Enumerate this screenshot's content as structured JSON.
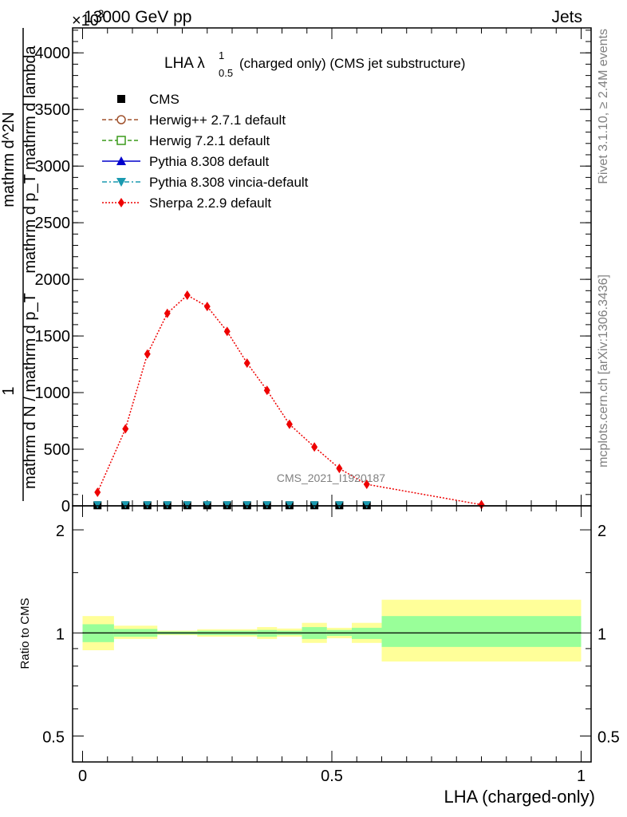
{
  "header": {
    "energy": "13000 GeV pp",
    "process": "Jets",
    "multiplier": "×10",
    "multiplier_exp": "-3"
  },
  "side_labels": {
    "rivet": "Rivet 3.1.10, ≥ 2.4M events",
    "mcplots": "mcplots.cern.ch [arXiv:1306.3436]"
  },
  "plot_title": {
    "main": "LHA λ",
    "sup": "1",
    "sub": "0.5",
    "rest": "(charged only) (CMS jet substructure)"
  },
  "watermark": "CMS_2021_I1920187",
  "ylabel_main": {
    "left_line": "1",
    "left_den": "mathrm d N / mathrm d p_T",
    "right_num": "mathrm d^2N",
    "right_den": "mathrm d p_T mathrm d lambda"
  },
  "ylabel_ratio": "Ratio to CMS",
  "xlabel": "LHA (charged-only)",
  "legend": [
    {
      "label": "CMS",
      "color": "#000000",
      "marker": "square-filled",
      "line": "none"
    },
    {
      "label": "Herwig++ 2.7.1 default",
      "color": "#a0522d",
      "marker": "circle-open",
      "line": "dashed"
    },
    {
      "label": "Herwig 7.2.1 default",
      "color": "#3a9a1a",
      "marker": "square-open",
      "line": "dashed"
    },
    {
      "label": "Pythia 8.308 default",
      "color": "#0000cc",
      "marker": "triangle-up",
      "line": "solid"
    },
    {
      "label": "Pythia 8.308 vincia-default",
      "color": "#1a9ab0",
      "marker": "triangle-down",
      "line": "dashdot"
    },
    {
      "label": "Sherpa 2.2.9 default",
      "color": "#ee0000",
      "marker": "diamond",
      "line": "dotted"
    }
  ],
  "chart_data": [
    {
      "type": "line",
      "title": "LHA λ^1_0.5 (charged only) (CMS jet substructure)",
      "xlabel": "LHA (charged-only)",
      "ylabel": "1/(mathrm d N / mathrm d p_T) mathrm d^2N / (mathrm d p_T mathrm d lambda)",
      "xlim": [
        -0.02,
        1.02
      ],
      "ylim": [
        0,
        4.22
      ],
      "y_multiplier": "×10^-3",
      "y_ticks": [
        0,
        0.5,
        1.0,
        1.5,
        2.0,
        2.5,
        3.0,
        3.5,
        4.0
      ],
      "y_tick_labels": [
        "0",
        "500",
        "1000",
        "1500",
        "2000",
        "2500",
        "3000",
        "3500",
        "4000"
      ],
      "x_ticks": [
        0,
        0.5,
        1
      ],
      "x_tick_labels": [
        "0",
        "0.5",
        "1"
      ],
      "series": [
        {
          "name": "Sherpa 2.2.9 default",
          "x": [
            0.03,
            0.086,
            0.13,
            0.17,
            0.21,
            0.25,
            0.29,
            0.33,
            0.37,
            0.415,
            0.465,
            0.515,
            0.57,
            0.8
          ],
          "y": [
            0.12,
            0.68,
            1.34,
            1.7,
            1.86,
            1.76,
            1.54,
            1.26,
            1.02,
            0.72,
            0.52,
            0.33,
            0.19,
            0.01
          ]
        },
        {
          "name": "CMS",
          "x": [
            0.03,
            0.086,
            0.13,
            0.17,
            0.21,
            0.25,
            0.29,
            0.33,
            0.37,
            0.415,
            0.465,
            0.515,
            0.57
          ],
          "y": [
            0.005,
            0.005,
            0.005,
            0.005,
            0.005,
            0.005,
            0.005,
            0.005,
            0.005,
            0.005,
            0.005,
            0.005,
            0.005
          ]
        },
        {
          "name": "Pythia 8.308 vincia-default",
          "x": [
            0.03,
            0.086,
            0.13,
            0.17,
            0.21,
            0.25,
            0.29,
            0.33,
            0.37,
            0.415,
            0.465,
            0.515,
            0.57
          ],
          "y": [
            0.005,
            0.005,
            0.005,
            0.005,
            0.005,
            0.005,
            0.005,
            0.005,
            0.005,
            0.005,
            0.005,
            0.005,
            0.005
          ]
        }
      ]
    },
    {
      "type": "area",
      "ylabel": "Ratio to CMS",
      "xlabel": "LHA (charged-only)",
      "xlim": [
        -0.02,
        1.02
      ],
      "ylim": [
        0.42,
        2.35
      ],
      "y_scale": "log",
      "y_ticks": [
        0.5,
        1,
        2
      ],
      "y_tick_labels": [
        "0.5",
        "1",
        "2"
      ],
      "x_ticks": [
        0,
        0.5,
        1
      ],
      "x_tick_labels": [
        "0",
        "0.5",
        "1"
      ],
      "reference_line": 1,
      "bins": [
        {
          "x0": 0.0,
          "x1": 0.063,
          "green": [
            0.94,
            1.06
          ],
          "yellow": [
            0.89,
            1.12
          ]
        },
        {
          "x0": 0.063,
          "x1": 0.15,
          "green": [
            0.975,
            1.027
          ],
          "yellow": [
            0.96,
            1.05
          ]
        },
        {
          "x0": 0.15,
          "x1": 0.23,
          "green": [
            0.99,
            1.01
          ],
          "yellow": [
            0.985,
            1.015
          ]
        },
        {
          "x0": 0.23,
          "x1": 0.35,
          "green": [
            0.985,
            1.015
          ],
          "yellow": [
            0.975,
            1.025
          ]
        },
        {
          "x0": 0.35,
          "x1": 0.39,
          "green": [
            0.975,
            1.02
          ],
          "yellow": [
            0.96,
            1.04
          ]
        },
        {
          "x0": 0.39,
          "x1": 0.44,
          "green": [
            0.985,
            1.015
          ],
          "yellow": [
            0.975,
            1.03
          ]
        },
        {
          "x0": 0.44,
          "x1": 0.49,
          "green": [
            0.96,
            1.04
          ],
          "yellow": [
            0.935,
            1.07
          ]
        },
        {
          "x0": 0.49,
          "x1": 0.54,
          "green": [
            0.98,
            1.02
          ],
          "yellow": [
            0.965,
            1.035
          ]
        },
        {
          "x0": 0.54,
          "x1": 0.6,
          "green": [
            0.96,
            1.035
          ],
          "yellow": [
            0.935,
            1.07
          ]
        },
        {
          "x0": 0.6,
          "x1": 1.0,
          "green": [
            0.91,
            1.12
          ],
          "yellow": [
            0.825,
            1.25
          ]
        }
      ]
    }
  ]
}
